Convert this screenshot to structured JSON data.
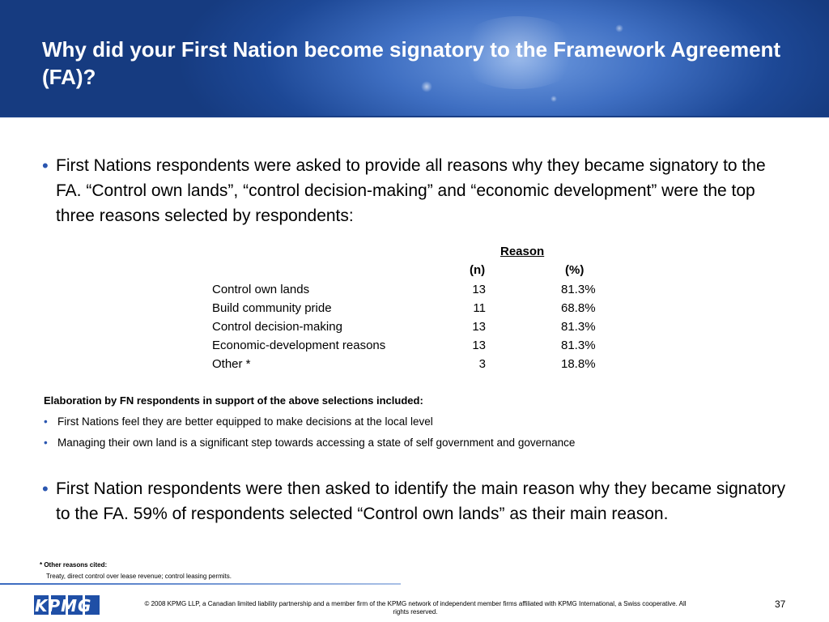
{
  "slide": {
    "title": "Why did your First Nation become signatory to the Framework Agreement (FA)?",
    "bullet1": "First Nations respondents were asked to provide all reasons why they became signatory to the FA. “Control own lands”, “control decision-making” and “economic development” were the top three reasons selected by respondents:",
    "table": {
      "group_header": "Reason",
      "col_n": "(n)",
      "col_pct": "(%)",
      "rows": [
        {
          "label": "Control own lands",
          "n": "13",
          "pct": "81.3%"
        },
        {
          "label": "Build community pride",
          "n": "11",
          "pct": "68.8%"
        },
        {
          "label": "Control decision-making",
          "n": "13",
          "pct": "81.3%"
        },
        {
          "label": "Economic-development reasons",
          "n": "13",
          "pct": "81.3%"
        },
        {
          "label": "Other *",
          "n": "3",
          "pct": "18.8%"
        }
      ]
    },
    "elaboration": {
      "title": "Elaboration by FN respondents in support of the above selections included:",
      "items": [
        "First Nations feel they are better equipped to make decisions at the local level",
        "Managing their own land is a significant step towards accessing a state of self government and governance"
      ]
    },
    "bullet2": "First Nation respondents were then asked to identify the main reason why they became signatory to the FA.  59% of  respondents selected “Control own lands” as their main reason.",
    "footnote": {
      "title": "* Other reasons cited:",
      "text": "Treaty, direct control over lease revenue; control leasing permits."
    },
    "footer": {
      "logo": "KPMG",
      "copyright": "© 2008 KPMG LLP, a Canadian limited liability partnership and a member firm of the KPMG network of independent member firms affiliated with KPMG International, a Swiss cooperative. All rights reserved.",
      "page_number": "37"
    }
  },
  "colors": {
    "header_blue": "#1d4896",
    "bullet_blue": "#2a56b0",
    "logo_blue": "#1f4fa6"
  }
}
